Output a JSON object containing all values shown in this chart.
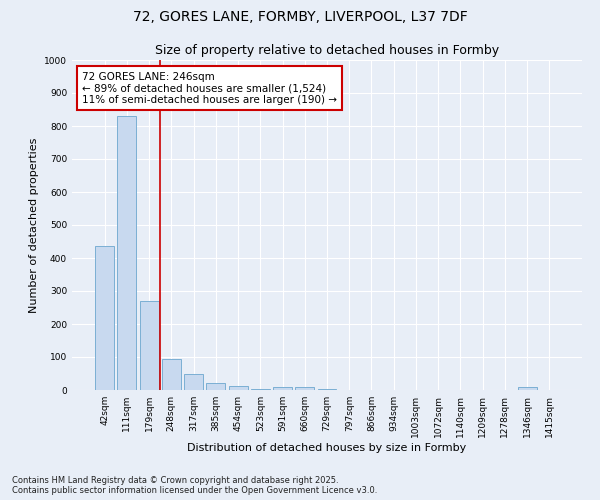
{
  "title": "72, GORES LANE, FORMBY, LIVERPOOL, L37 7DF",
  "subtitle": "Size of property relative to detached houses in Formby",
  "xlabel": "Distribution of detached houses by size in Formby",
  "ylabel": "Number of detached properties",
  "categories": [
    "42sqm",
    "111sqm",
    "179sqm",
    "248sqm",
    "317sqm",
    "385sqm",
    "454sqm",
    "523sqm",
    "591sqm",
    "660sqm",
    "729sqm",
    "797sqm",
    "866sqm",
    "934sqm",
    "1003sqm",
    "1072sqm",
    "1140sqm",
    "1209sqm",
    "1278sqm",
    "1346sqm",
    "1415sqm"
  ],
  "values": [
    435,
    830,
    270,
    95,
    47,
    22,
    12,
    3,
    10,
    10,
    3,
    0,
    0,
    0,
    0,
    0,
    0,
    0,
    0,
    10,
    0
  ],
  "bar_color": "#c8d9ef",
  "bar_edge_color": "#7bafd4",
  "highlight_line_color": "#cc0000",
  "annotation_text": "72 GORES LANE: 246sqm\n← 89% of detached houses are smaller (1,524)\n11% of semi-detached houses are larger (190) →",
  "annotation_box_facecolor": "#ffffff",
  "annotation_box_edge": "#cc0000",
  "ylim": [
    0,
    1000
  ],
  "yticks": [
    0,
    100,
    200,
    300,
    400,
    500,
    600,
    700,
    800,
    900,
    1000
  ],
  "footer": "Contains HM Land Registry data © Crown copyright and database right 2025.\nContains public sector information licensed under the Open Government Licence v3.0.",
  "bg_color": "#e8eef7",
  "plot_bg_color": "#e8eef7",
  "title_fontsize": 10,
  "subtitle_fontsize": 9,
  "tick_fontsize": 6.5,
  "label_fontsize": 8,
  "footer_fontsize": 6,
  "annotation_fontsize": 7.5
}
